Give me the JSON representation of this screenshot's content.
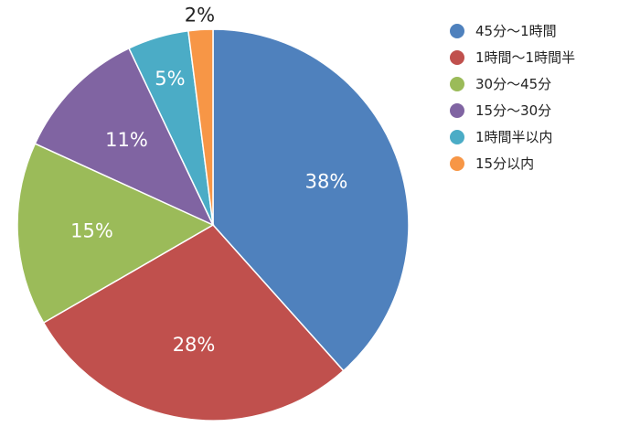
{
  "chart_data": {
    "type": "pie",
    "categories": [
      "45分～1時間",
      "1時間～1時間半",
      "30分～45分",
      "15分～30分",
      "1時間半以内",
      "15分以内"
    ],
    "values": [
      38,
      28,
      15,
      11,
      5,
      2
    ],
    "labels": [
      "38%",
      "28%",
      "15%",
      "11%",
      "5%",
      "2%"
    ],
    "colors": [
      "#4F81BD",
      "#C0504D",
      "#9BBB59",
      "#8064A2",
      "#4BACC6",
      "#F79646"
    ],
    "legend": "right"
  }
}
